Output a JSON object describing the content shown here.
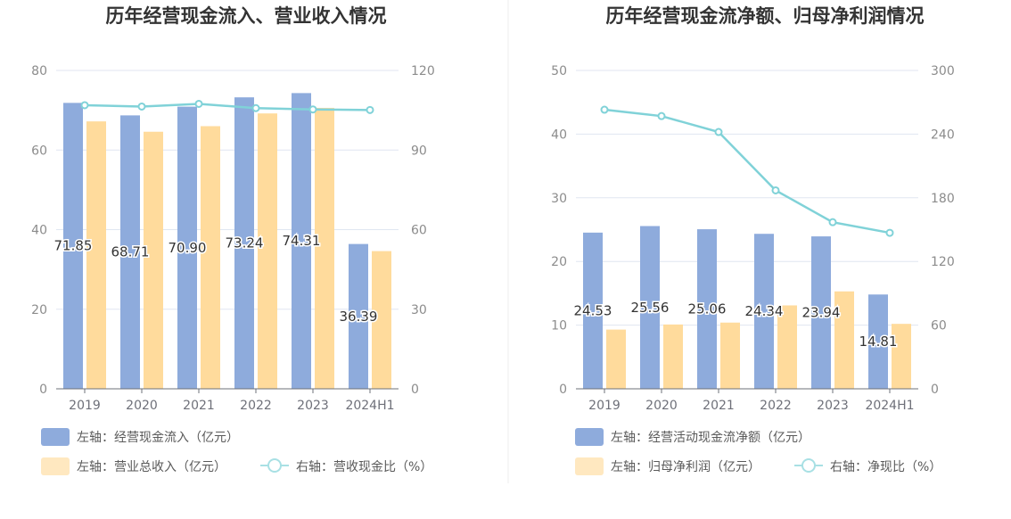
{
  "colors": {
    "bar_primary": "#8eabdc",
    "bar_secondary": "#ffdb9c",
    "line": "#80d2d8",
    "grid": "#e0e6f1",
    "axis": "#6e7079",
    "divider": "#eeeeee"
  },
  "chart_data": [
    {
      "type": "bar",
      "title": "历年经营现金流入、营业收入情况",
      "categories": [
        "2019",
        "2020",
        "2021",
        "2022",
        "2023",
        "2024H1"
      ],
      "y_left": {
        "min": 0,
        "max": 80,
        "ticks": [
          "0",
          "20",
          "40",
          "60",
          "80"
        ]
      },
      "y_right": {
        "min": 0,
        "max": 120,
        "ticks": [
          "0",
          "30",
          "60",
          "90",
          "120"
        ]
      },
      "grid": true,
      "legend_position": "bottom-left",
      "series": [
        {
          "name": "左轴：经营现金流入（亿元）",
          "kind": "bar",
          "axis": "left",
          "values": [
            71.85,
            68.71,
            70.9,
            73.24,
            74.31,
            36.39
          ],
          "labels": [
            "71.85",
            "68.71",
            "70.90",
            "73.24",
            "74.31",
            "36.39"
          ]
        },
        {
          "name": "左轴：营业总收入（亿元）",
          "kind": "bar",
          "axis": "left",
          "values": [
            67.2,
            64.6,
            66.0,
            69.2,
            70.6,
            34.6
          ]
        },
        {
          "name": "右轴：营收现金比（%）",
          "kind": "line",
          "axis": "right",
          "values": [
            106.9,
            106.4,
            107.4,
            105.8,
            105.3,
            105.1
          ]
        }
      ]
    },
    {
      "type": "bar",
      "title": "历年经营现金流净额、归母净利润情况",
      "categories": [
        "2019",
        "2020",
        "2021",
        "2022",
        "2023",
        "2024H1"
      ],
      "y_left": {
        "min": 0,
        "max": 50,
        "ticks": [
          "0",
          "10",
          "20",
          "30",
          "40",
          "50"
        ]
      },
      "y_right": {
        "min": 0,
        "max": 300,
        "ticks": [
          "0",
          "60",
          "120",
          "180",
          "240",
          "300"
        ]
      },
      "grid": true,
      "legend_position": "bottom-left",
      "series": [
        {
          "name": "左轴：经营活动现金流净额（亿元）",
          "kind": "bar",
          "axis": "left",
          "values": [
            24.53,
            25.56,
            25.06,
            24.34,
            23.94,
            14.81
          ],
          "labels": [
            "24.53",
            "25.56",
            "25.06",
            "24.34",
            "23.94",
            "14.81"
          ]
        },
        {
          "name": "左轴：归母净利润（亿元）",
          "kind": "bar",
          "axis": "left",
          "values": [
            9.3,
            10.1,
            10.4,
            13.1,
            15.3,
            10.2
          ]
        },
        {
          "name": "右轴：净现比（%）",
          "kind": "line",
          "axis": "right",
          "values": [
            263,
            257,
            242,
            187,
            157,
            147
          ]
        }
      ]
    }
  ]
}
